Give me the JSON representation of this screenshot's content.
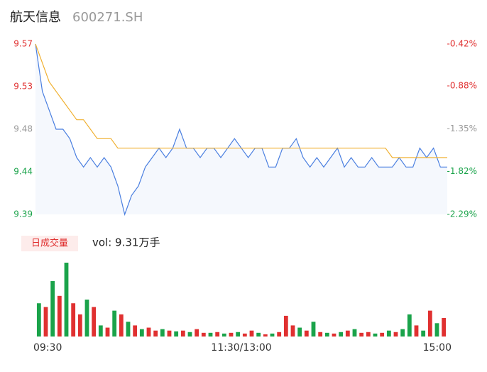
{
  "chart_data": {
    "type": "intraday",
    "title": "航天信息",
    "subtitle": "600271.SH",
    "x": [
      0,
      4,
      8,
      12,
      16,
      20,
      24,
      28,
      32,
      36,
      40,
      44,
      48,
      52,
      56,
      60,
      64,
      68,
      72,
      76,
      80,
      84,
      88,
      92,
      96,
      100,
      104,
      108,
      112,
      116,
      120,
      124,
      128,
      132,
      136,
      140,
      144,
      148,
      152,
      156,
      160,
      164,
      168,
      172,
      176,
      180,
      184,
      188,
      192,
      196,
      200,
      204,
      208,
      212,
      216,
      220,
      224,
      228,
      232,
      236,
      240
    ],
    "xlim": [
      0,
      240
    ],
    "xticks": [
      {
        "value": 0,
        "label": "09:30"
      },
      {
        "value": 120,
        "label": "11:30/13:00"
      },
      {
        "value": 240,
        "label": "15:00"
      }
    ],
    "series": [
      {
        "name": "price",
        "color": "#4a7fe0",
        "values": [
          9.57,
          9.52,
          9.5,
          9.48,
          9.48,
          9.47,
          9.45,
          9.44,
          9.45,
          9.44,
          9.45,
          9.44,
          9.42,
          9.39,
          9.41,
          9.42,
          9.44,
          9.45,
          9.46,
          9.45,
          9.46,
          9.48,
          9.46,
          9.46,
          9.45,
          9.46,
          9.46,
          9.45,
          9.46,
          9.47,
          9.46,
          9.45,
          9.46,
          9.46,
          9.44,
          9.44,
          9.46,
          9.46,
          9.47,
          9.45,
          9.44,
          9.45,
          9.44,
          9.45,
          9.46,
          9.44,
          9.45,
          9.44,
          9.44,
          9.45,
          9.44,
          9.44,
          9.44,
          9.45,
          9.44,
          9.44,
          9.46,
          9.45,
          9.46,
          9.44,
          9.44
        ]
      },
      {
        "name": "average",
        "color": "#f0b030",
        "values": [
          9.57,
          9.55,
          9.53,
          9.52,
          9.51,
          9.5,
          9.49,
          9.49,
          9.48,
          9.47,
          9.47,
          9.47,
          9.46,
          9.46,
          9.46,
          9.46,
          9.46,
          9.46,
          9.46,
          9.46,
          9.46,
          9.46,
          9.46,
          9.46,
          9.46,
          9.46,
          9.46,
          9.46,
          9.46,
          9.46,
          9.46,
          9.46,
          9.46,
          9.46,
          9.46,
          9.46,
          9.46,
          9.46,
          9.46,
          9.46,
          9.46,
          9.46,
          9.46,
          9.46,
          9.46,
          9.46,
          9.46,
          9.46,
          9.46,
          9.46,
          9.46,
          9.46,
          9.45,
          9.45,
          9.45,
          9.45,
          9.45,
          9.45,
          9.45,
          9.45,
          9.45
        ]
      }
    ],
    "ylim": [
      9.39,
      9.57
    ],
    "yticks": [
      9.57,
      {
        "value": 9.525,
        "label": "9.53"
      },
      9.48,
      {
        "value": 9.435,
        "label": "9.44"
      },
      9.39
    ],
    "y2lim": [
      -2.29,
      -0.42
    ],
    "y2ticks": [
      {
        "value": -0.42,
        "label": "-0.42%"
      },
      {
        "value": -0.88,
        "label": "-0.88%"
      },
      {
        "value": -1.35,
        "label": "-1.35%"
      },
      {
        "value": -1.82,
        "label": "-1.82%"
      },
      {
        "value": -2.29,
        "label": "-2.29%"
      }
    ],
    "tick_colors": [
      "#e03030",
      "#e03030",
      "#999999",
      "#1aa34a",
      "#1aa34a"
    ],
    "volume_title": "日成交量",
    "volume_text": "vol: 9.31万手",
    "volume_values": [
      45,
      40,
      75,
      55,
      100,
      45,
      30,
      50,
      40,
      15,
      12,
      35,
      30,
      20,
      15,
      10,
      12,
      8,
      10,
      8,
      7,
      8,
      6,
      10,
      5,
      5,
      6,
      4,
      5,
      6,
      4,
      8,
      5,
      3,
      4,
      6,
      28,
      15,
      12,
      8,
      20,
      6,
      5,
      4,
      6,
      8,
      10,
      5,
      6,
      4,
      5,
      8,
      6,
      10,
      30,
      15,
      8,
      35,
      18,
      25
    ],
    "volume_up": [
      false,
      true,
      false,
      true,
      false,
      true,
      true,
      false,
      true,
      false,
      true,
      false,
      true,
      false,
      true,
      false,
      true,
      true,
      false,
      true,
      false,
      true,
      false,
      true,
      true,
      false,
      true,
      false,
      true,
      false,
      true,
      true,
      false,
      true,
      false,
      true,
      true,
      true,
      false,
      true,
      false,
      true,
      false,
      true,
      false,
      true,
      false,
      true,
      true,
      false,
      true,
      false,
      true,
      false,
      false,
      true,
      false,
      true,
      false,
      true
    ],
    "up_color": "#e03030",
    "down_color": "#1aa34a",
    "volume_lim": [
      0,
      100
    ]
  }
}
